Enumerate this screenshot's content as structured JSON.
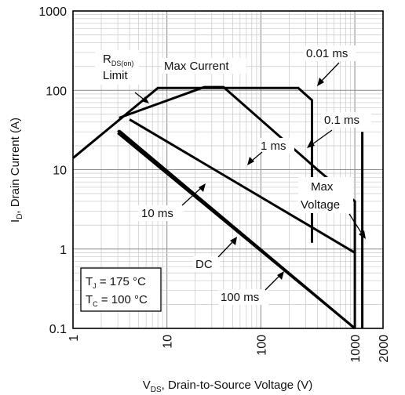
{
  "chart_data": {
    "type": "line",
    "xscale": "log",
    "yscale": "log",
    "xlim": [
      1,
      2000
    ],
    "ylim": [
      0.1,
      1000
    ],
    "xlabel_main": "V",
    "xlabel_sub": "DS",
    "xlabel_rest": ", Drain-to-Source Voltage (V)",
    "ylabel_main": "I",
    "ylabel_sub": "D",
    "ylabel_rest": ", Drain Current (A)",
    "x_ticks": [
      {
        "value": 1,
        "label": "1"
      },
      {
        "value": 10,
        "label": "10"
      },
      {
        "value": 100,
        "label": "100"
      },
      {
        "value": 1000,
        "label": "1000"
      },
      {
        "value": 2000,
        "label": "2000"
      }
    ],
    "y_ticks": [
      {
        "value": 0.1,
        "label": "0.1"
      },
      {
        "value": 1,
        "label": "1"
      },
      {
        "value": 10,
        "label": "10"
      },
      {
        "value": 100,
        "label": "100"
      },
      {
        "value": 1000,
        "label": "1000"
      }
    ],
    "grid": true,
    "series": [
      {
        "name": "0.01 ms",
        "points": [
          [
            1,
            14
          ],
          [
            8,
            107
          ],
          [
            250,
            107
          ],
          [
            350,
            75
          ],
          [
            350,
            1.2
          ]
        ]
      },
      {
        "name": "0.1 ms",
        "points": [
          [
            3.1,
            45
          ],
          [
            25,
            110
          ],
          [
            40,
            110
          ],
          [
            400,
            10
          ],
          [
            1000,
            4
          ],
          [
            1000,
            0.1
          ]
        ]
      },
      {
        "name": "1 ms",
        "points": [
          [
            4,
            43
          ],
          [
            1000,
            0.9
          ]
        ]
      },
      {
        "name": "10 ms",
        "points": [
          [
            3.1,
            31
          ],
          [
            1000,
            0.1
          ]
        ]
      },
      {
        "name": "DC",
        "points": [
          [
            3,
            29
          ],
          [
            1000,
            0.085
          ]
        ]
      },
      {
        "name": "100 ms",
        "points": [
          [
            3,
            31
          ],
          [
            1000,
            0.09
          ]
        ]
      },
      {
        "name": "Max Voltage",
        "points": [
          [
            1200,
            0.1
          ],
          [
            1200,
            30
          ]
        ]
      }
    ],
    "annotations": {
      "rds_main": "R",
      "rds_sub": "DS(on)",
      "rds_limit": "Limit",
      "max_current": "Max Current",
      "ms001": "0.01 ms",
      "ms01": "0.1 ms",
      "ms1": "1 ms",
      "ms10": "10 ms",
      "dc": "DC",
      "ms100": "100 ms",
      "max": "Max",
      "voltage": "Voltage"
    },
    "conditions": {
      "tj_main": "T",
      "tj_sub": "J",
      "tj_value": " = 175 °C",
      "tc_main": "T",
      "tc_sub": "C",
      "tc_value": " = 100 °C"
    }
  }
}
